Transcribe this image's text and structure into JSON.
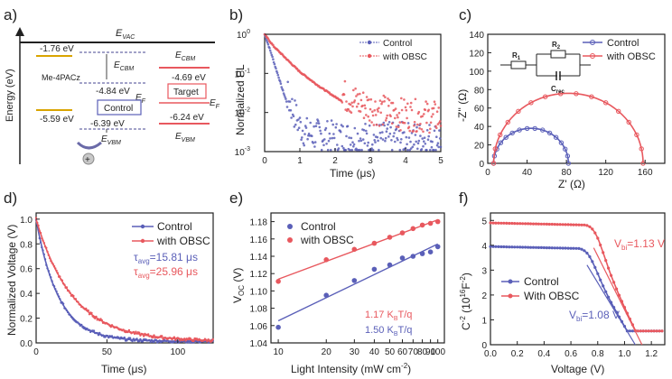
{
  "colors": {
    "control": "#5a5fb8",
    "obsc": "#e8585e",
    "axis": "#222222",
    "level_gold": "#d9a400",
    "level_red": "#e8585e",
    "level_dash": "#6a6aa8"
  },
  "panels": {
    "a": {
      "label": "a)",
      "ylabel": "Energy (eV)",
      "evac": "E",
      "evac_sub": "VAC",
      "material": "Me-4PACz",
      "me_cbm": "-1.76 eV",
      "me_vbm": "-5.59 eV",
      "ctrl_ecbm": "E",
      "ctrl_ecbm_sub": "CBM",
      "ctrl_ef_val": "-4.84 eV",
      "ctrl_ef": "E",
      "ctrl_ef_sub": "F",
      "ctrl_box": "Control",
      "ctrl_vbm_val": "-6.39 eV",
      "ctrl_evbm": "E",
      "ctrl_evbm_sub": "VBM",
      "tgt_ecbm": "E",
      "tgt_ecbm_sub": "CBM",
      "tgt_cbm_val": "-4.69 eV",
      "tgt_box": "Target",
      "tgt_ef": "E",
      "tgt_ef_sub": "F",
      "tgt_vbm_val": "-6.24 eV",
      "tgt_evbm": "E",
      "tgt_evbm_sub": "VBM",
      "hole": "+"
    },
    "b": {
      "label": "b)",
      "xlabel": "Time (μs)",
      "ylabel": "Normalized PL",
      "xticks": [
        "0",
        "1",
        "2",
        "3",
        "4",
        "5"
      ],
      "yticks": [
        "10",
        "10",
        "10",
        "10"
      ],
      "ytick_exp": [
        "-3",
        "-2",
        "-1",
        "0"
      ],
      "legend": [
        "Control",
        "with OBSC"
      ]
    },
    "c": {
      "label": "c)",
      "xlabel": "Z' (Ω)",
      "ylabel": "-Z'' (Ω)",
      "xticks": [
        "0",
        "40",
        "80",
        "120",
        "160"
      ],
      "yticks": [
        "0",
        "20",
        "40",
        "60",
        "80",
        "100",
        "120",
        "140"
      ],
      "legend": [
        "Control",
        "with OBSC"
      ],
      "circuit": {
        "r1": "R",
        "r1_sub": "1",
        "r2": "R",
        "r2_sub": "2",
        "crec": "C",
        "crec_sub": "rec"
      }
    },
    "d": {
      "label": "d)",
      "xlabel": "Time (μs)",
      "ylabel": "Normalized Voltage (V)",
      "xticks": [
        "0",
        "50",
        "100"
      ],
      "yticks": [
        "0.0",
        "0.2",
        "0.4",
        "0.6",
        "0.8",
        "1.0"
      ],
      "legend": [
        "Control",
        "with OBSC"
      ],
      "tau_ctrl": "=15.81 μs",
      "tau_obsc": "=25.96 μs",
      "tau_sym": "τ",
      "tau_sub": "avg"
    },
    "e": {
      "label": "e)",
      "xlabel": "Light Intensity (mW cm",
      "xlabel_sup": "-2",
      "xlabel_end": ")",
      "ylabel": "V",
      "ylabel_sub": "OC",
      "ylabel_end": " (V)",
      "xticks": [
        "10",
        "20",
        "30",
        "40",
        "50",
        "60",
        "70",
        "80",
        "90",
        "100"
      ],
      "yticks": [
        "1.04",
        "1.06",
        "1.08",
        "1.10",
        "1.12",
        "1.14",
        "1.16",
        "1.18"
      ],
      "legend": [
        "Control",
        "with OBSC"
      ],
      "slope_obsc": "1.17 K",
      "slope_ctrl": "1.50 K",
      "slope_sub": "B",
      "slope_end": "T/q"
    },
    "f": {
      "label": "f)",
      "xlabel": "Voltage (V)",
      "ylabel": "C",
      "ylabel_sup": "-2",
      "ylabel_mid": " (10",
      "ylabel_sup2": "16",
      "ylabel_end": "F",
      "ylabel_sup3": "-2",
      "ylabel_close": ")",
      "xticks": [
        "0.0",
        "0.2",
        "0.4",
        "0.6",
        "0.8",
        "1.0",
        "1.2"
      ],
      "yticks": [
        "0",
        "1",
        "2",
        "3",
        "4",
        "5"
      ],
      "legend": [
        "Control",
        "With OBSC"
      ],
      "vbi_obsc": "=1.13 V",
      "vbi_ctrl": "=1.08 V",
      "vbi_sym": "V",
      "vbi_sub": "bi"
    }
  },
  "chart_data": [
    {
      "type": "diagram",
      "panel": "a",
      "levels_eV": {
        "Me-4PACz_CBM": -1.76,
        "Me-4PACz_VBM": -5.59,
        "Control_EF": -4.84,
        "Control_VBM": -6.39,
        "Target_CBM": -4.69,
        "Target_VBM": -6.24
      }
    },
    {
      "type": "scatter",
      "panel": "b",
      "title": "",
      "xlabel": "Time (μs)",
      "ylabel": "Normalized PL",
      "xlim": [
        0,
        5
      ],
      "ylim": [
        0.001,
        1
      ],
      "yscale": "log",
      "series": [
        {
          "name": "Control",
          "x": [
            0,
            0.1,
            0.2,
            0.3,
            0.4,
            0.5,
            0.6,
            0.7,
            0.8,
            0.9,
            1.0,
            1.2,
            1.5,
            2.0,
            3.0,
            4.0,
            5.0
          ],
          "y": [
            1,
            0.55,
            0.3,
            0.15,
            0.08,
            0.04,
            0.022,
            0.013,
            0.008,
            0.005,
            0.003,
            0.002,
            0.0018,
            0.0016,
            0.0015,
            0.0015,
            0.0015
          ]
        },
        {
          "name": "with OBSC",
          "x": [
            0,
            0.25,
            0.5,
            0.75,
            1.0,
            1.5,
            2.0,
            2.5,
            3.0,
            3.5,
            4.0,
            4.5,
            5.0
          ],
          "y": [
            1,
            0.5,
            0.3,
            0.18,
            0.11,
            0.05,
            0.025,
            0.014,
            0.009,
            0.007,
            0.006,
            0.0055,
            0.005
          ]
        }
      ]
    },
    {
      "type": "line",
      "panel": "c",
      "title": "",
      "xlabel": "Z' (Ω)",
      "ylabel": "-Z'' (Ω)",
      "xlim": [
        0,
        180
      ],
      "ylim": [
        0,
        140
      ],
      "series": [
        {
          "name": "Control",
          "center": 44,
          "radius": 38
        },
        {
          "name": "with OBSC",
          "center": 82,
          "radius": 76
        }
      ]
    },
    {
      "type": "line",
      "panel": "d",
      "title": "",
      "xlabel": "Time (μs)",
      "ylabel": "Normalized Voltage (V)",
      "xlim": [
        0,
        125
      ],
      "ylim": [
        0,
        1.05
      ],
      "series": [
        {
          "name": "Control",
          "tau": 15.81
        },
        {
          "name": "with OBSC",
          "tau": 25.96
        }
      ]
    },
    {
      "type": "scatter",
      "panel": "e",
      "title": "",
      "xlabel": "Light Intensity (mW cm-2)",
      "ylabel": "VOC (V)",
      "xscale": "log",
      "xlim": [
        9,
        110
      ],
      "ylim": [
        1.04,
        1.19
      ],
      "series": [
        {
          "name": "Control",
          "x": [
            10,
            20,
            30,
            40,
            50,
            60,
            70,
            80,
            90,
            100
          ],
          "y": [
            1.058,
            1.095,
            1.112,
            1.125,
            1.13,
            1.138,
            1.14,
            1.143,
            1.145,
            1.151
          ]
        },
        {
          "name": "with OBSC",
          "x": [
            10,
            20,
            30,
            40,
            50,
            60,
            70,
            80,
            90,
            100
          ],
          "y": [
            1.111,
            1.136,
            1.148,
            1.155,
            1.162,
            1.167,
            1.172,
            1.176,
            1.178,
            1.18
          ]
        }
      ]
    },
    {
      "type": "line",
      "panel": "f",
      "title": "",
      "xlabel": "Voltage (V)",
      "ylabel": "C-2 (1016 F-2)",
      "xlim": [
        0,
        1.3
      ],
      "ylim": [
        0,
        5.3
      ],
      "series": [
        {
          "name": "Control",
          "plateau": 3.95,
          "vbi": 1.08
        },
        {
          "name": "With OBSC",
          "plateau": 4.9,
          "vbi": 1.13
        }
      ]
    }
  ]
}
